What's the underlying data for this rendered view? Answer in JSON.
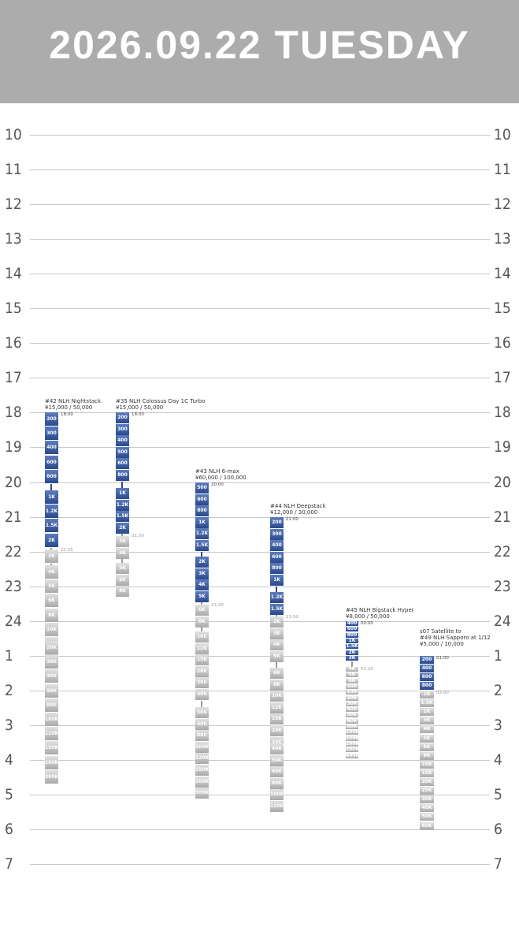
{
  "header": {
    "title": "2026.09.22 TUESDAY"
  },
  "hours": [
    "10",
    "11",
    "12",
    "13",
    "14",
    "15",
    "16",
    "17",
    "18",
    "19",
    "20",
    "21",
    "22",
    "23",
    "24",
    "1",
    "2",
    "3",
    "4",
    "5",
    "6",
    "7"
  ],
  "events": [
    {
      "name": "#42 NLH Nightstack",
      "price": "¥15,000 / 50,000",
      "start": "18:00",
      "break": "21:55",
      "segments": [
        {
          "color": "blue",
          "levels": [
            "200",
            "300",
            "400",
            "600",
            "800"
          ]
        },
        {
          "color": "blue",
          "levels": [
            "1K",
            "1.2K",
            "1.5K",
            "2K"
          ]
        },
        {
          "color": "gray",
          "levels": [
            "3K"
          ]
        },
        {
          "color": "gray",
          "levels": [
            "4K",
            "5K",
            "6K",
            "8K",
            "10K",
            "12K",
            "15K"
          ]
        },
        {
          "color": "gray",
          "levels": [
            "20K",
            "30K",
            "40K",
            "50K",
            "80K",
            "100K",
            "120K",
            "150K",
            "200K",
            "300K"
          ]
        }
      ]
    },
    {
      "name": "#35 NLH Colossus Day 1C Turbo",
      "price": "¥15,000 / 50,000",
      "start": "18:00",
      "break": "21:30",
      "segments": [
        {
          "color": "blue",
          "levels": [
            "200",
            "300",
            "400",
            "500",
            "600",
            "800"
          ]
        },
        {
          "color": "blue",
          "levels": [
            "1K",
            "1.2K",
            "1.5K",
            "2K"
          ]
        },
        {
          "color": "gray",
          "levels": [
            "3K",
            "4K"
          ]
        },
        {
          "color": "gray",
          "levels": [
            "5K",
            "6K",
            "8K"
          ]
        }
      ]
    },
    {
      "name": "#43 NLH 6-max",
      "price": "¥60,000 / 100,000",
      "start": "20:00",
      "break": "23:30",
      "segments": [
        {
          "color": "blue",
          "levels": [
            "500",
            "600",
            "800",
            "1K",
            "1.2K",
            "1.5K"
          ]
        },
        {
          "color": "blue",
          "levels": [
            "2K",
            "3K",
            "4K",
            "5K"
          ]
        },
        {
          "color": "gray",
          "levels": [
            "6K",
            "8K"
          ]
        },
        {
          "color": "gray",
          "levels": [
            "10K",
            "12K",
            "15K",
            "20K",
            "30K",
            "40K"
          ]
        },
        {
          "color": "gray",
          "levels": [
            "50K",
            "60K",
            "80K",
            "100K",
            "120K",
            "150K",
            "200K",
            "300K"
          ]
        }
      ]
    },
    {
      "name": "#44 NLH Deepstack",
      "price": "¥12,000 / 30,000",
      "start": "21:00",
      "break": "23:50",
      "segments": [
        {
          "color": "blue",
          "levels": [
            "200",
            "300",
            "400",
            "600",
            "800",
            "1K"
          ]
        },
        {
          "color": "blue",
          "levels": [
            "1.2K",
            "1.5K"
          ]
        },
        {
          "color": "gray",
          "levels": [
            "2K",
            "3K",
            "4K",
            "5K"
          ]
        },
        {
          "color": "gray",
          "levels": [
            "6K",
            "8K",
            "10K",
            "12K",
            "15K",
            "20K",
            "30K"
          ]
        },
        {
          "color": "gray",
          "levels": [
            "40K",
            "50K",
            "60K",
            "80K",
            "100K",
            "120K"
          ]
        }
      ]
    },
    {
      "name": "#45 NLH Bigstack Hyper",
      "price": "¥8,000 / 50,000",
      "start": "00:00",
      "break": "01:20",
      "segments": [
        {
          "color": "blue",
          "levels": [
            "400",
            "600",
            "800",
            "1K",
            "1.5K",
            "2K",
            "3K"
          ]
        },
        {
          "color": "gray",
          "levels": [
            "4K",
            "5K",
            "6K",
            "10K",
            "15K",
            "20K",
            "30K",
            "40K",
            "50K",
            "60K",
            "80K",
            "100K",
            "150K",
            "200K",
            "300K",
            "400K"
          ]
        }
      ]
    },
    {
      "name": "s07 Satellite to\n#49 NLH Sapporo at 1/12",
      "price": "¥5,000 / 10,000",
      "start": "01:00",
      "break": "02:00",
      "segments": [
        {
          "color": "blue",
          "levels": [
            "200",
            "400",
            "600",
            "800"
          ]
        },
        {
          "color": "gray",
          "levels": [
            "1K",
            "1.5K",
            "2K",
            "3K",
            "4K",
            "5K",
            "6K",
            "8K",
            "10K",
            "15K",
            "20K",
            "25K",
            "30K",
            "40K",
            "50K",
            "60K"
          ]
        }
      ]
    }
  ]
}
